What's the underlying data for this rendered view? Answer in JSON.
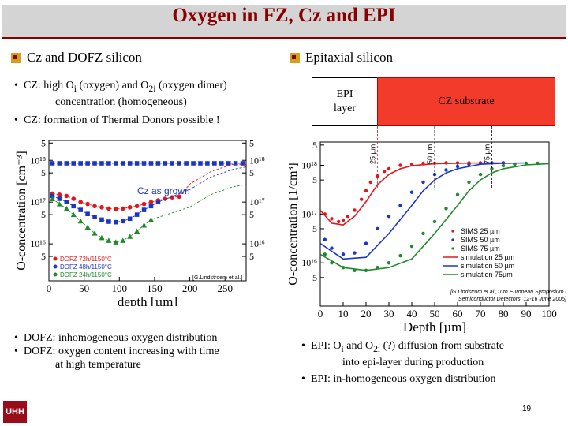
{
  "slide": {
    "title": "Oxygen in FZ, Cz and EPI",
    "page_number": "19",
    "logo_text": "UHH"
  },
  "left": {
    "heading": "Cz and DOFZ silicon",
    "bullets_top": [
      {
        "prefix": "CZ:  high O",
        "sub1": "i",
        "mid": " (oxygen) and O",
        "sub2": "2i",
        "suffix": " (oxygen dimer)",
        "cont": "concentration (homogeneous)"
      },
      {
        "text": "CZ: formation of Thermal Donors possible !"
      }
    ],
    "bullets_bottom": [
      {
        "text": "DOFZ:  inhomogeneous oxygen distribution"
      },
      {
        "text": "DOFZ: oxygen content increasing with time",
        "cont": "at high temperature"
      }
    ]
  },
  "right": {
    "heading": "Epitaxial silicon",
    "epi_label_1": "EPI",
    "epi_label_2": "layer",
    "cz_label": "CZ substrate",
    "bullets_bottom": [
      {
        "prefix": "EPI: O",
        "sub1": "i",
        "mid": " and O",
        "sub2": "2i",
        "suffix": " (?) diffusion from substrate",
        "cont": "into epi-layer during production"
      },
      {
        "text": "EPI: in-homogeneous oxygen distribution"
      }
    ]
  },
  "chart_data": [
    {
      "type": "scatter",
      "ylabel": "O-concentration [cm⁻³]",
      "xlabel": "depth [µm]",
      "xlim": [
        0,
        280
      ],
      "ylim": [
        1300000000000000.0,
        3e+18
      ],
      "y_scale": "log",
      "x_ticks": [
        "0",
        "50",
        "100",
        "150",
        "200",
        "250"
      ],
      "y_ticks": [
        "5",
        "10¹⁸",
        "5",
        "10¹⁷",
        "5",
        "10¹⁶",
        "5"
      ],
      "annotation": "Cz as grown",
      "credit": "[G.Lindstroem et al.]",
      "legend": [
        "DOFZ 72h/1150°C",
        "DOFZ 48h/1150°C",
        "DOFZ 24h/1150°C"
      ],
      "series": [
        {
          "name": "Cz as grown",
          "color": "#1a35c8",
          "x": [
            5,
            15,
            25,
            35,
            45,
            55,
            65,
            75,
            85,
            95,
            105,
            115,
            125,
            135,
            145,
            155,
            165,
            175,
            185,
            195,
            205,
            215,
            225,
            235,
            245,
            255,
            265,
            275
          ],
          "y": [
            8.5e+17,
            8.5e+17,
            8.5e+17,
            8.5e+17,
            8.5e+17,
            8.5e+17,
            8.5e+17,
            8.5e+17,
            8.5e+17,
            8.5e+17,
            8.5e+17,
            8.5e+17,
            8.5e+17,
            8.5e+17,
            8.5e+17,
            8.5e+17,
            8.5e+17,
            8.5e+17,
            8.5e+17,
            8.5e+17,
            8.5e+17,
            8.5e+17,
            8.5e+17,
            8.5e+17,
            8.5e+17,
            8.5e+17,
            8.5e+17,
            8.5e+17
          ]
        },
        {
          "name": "DOFZ 72h/1150°C",
          "color": "#e0181c",
          "x": [
            5,
            15,
            25,
            35,
            45,
            55,
            65,
            75,
            85,
            95,
            105,
            115,
            125,
            135,
            145,
            155,
            165,
            175,
            185
          ],
          "y": [
            1.6e+17,
            1.5e+17,
            1.4e+17,
            1.2e+17,
            1e+17,
            9e+16,
            8e+16,
            7.5e+16,
            7e+16,
            6.8e+16,
            7e+16,
            7.5e+16,
            8e+16,
            9e+16,
            1e+17,
            1.1e+17,
            1.2e+17,
            1.3e+17,
            1.35e+17
          ]
        },
        {
          "name": "DOFZ 48h/1150°C",
          "color": "#1a35c8",
          "x": [
            5,
            15,
            25,
            35,
            45,
            55,
            65,
            75,
            85,
            95,
            105,
            115,
            125,
            135,
            145,
            155
          ],
          "y": [
            1.4e+17,
            1.2e+17,
            1e+17,
            8e+16,
            6.5e+16,
            5.2e+16,
            4.4e+16,
            3.8e+16,
            3.4e+16,
            3.3e+16,
            3.5e+16,
            4e+16,
            5e+16,
            6.5e+16,
            8e+16,
            1e+17
          ]
        },
        {
          "name": "DOFZ 24h/1150°C",
          "color": "#1f8a2a",
          "x": [
            5,
            15,
            25,
            35,
            45,
            55,
            65,
            75,
            85,
            95,
            105,
            115,
            125,
            135,
            145
          ],
          "y": [
            1.2e+17,
            9e+16,
            7e+16,
            5e+16,
            3.5e+16,
            2.5e+16,
            1.8e+16,
            1.4e+16,
            1.2e+16,
            1.1e+16,
            1.2e+16,
            1.5e+16,
            2e+16,
            2.8e+16,
            3.8e+16
          ]
        }
      ]
    },
    {
      "type": "line",
      "ylabel": "O-concentration [1/cm³]",
      "xlabel": "Depth [µm]",
      "xlim": [
        0,
        100
      ],
      "ylim": [
        1300000000000000.0,
        3e+18
      ],
      "y_scale": "log",
      "x_ticks": [
        "0",
        "10",
        "20",
        "30",
        "40",
        "50",
        "60",
        "70",
        "80",
        "90",
        "100"
      ],
      "y_ticks": [
        "5",
        "10¹⁸",
        "5",
        "10¹⁷",
        "5",
        "10¹⁶",
        "5"
      ],
      "markers": [
        "25 µm",
        "50 µm",
        "75 µm"
      ],
      "credit_1": "[G.Lindström et al.,10th European Symposium on",
      "credit_2": "Semiconductor Detectors, 12-16 June 2005]",
      "legend": [
        "SIMS 25 µm",
        "SIMS 50 µm",
        "SIMS 75 µm",
        "simulation 25 µm",
        "simulation 50 µm",
        "simulation 75µm"
      ],
      "series": [
        {
          "name": "SIMS 25 µm",
          "color": "#e0181c",
          "x": [
            2,
            5,
            8,
            10,
            12,
            15,
            18,
            20,
            22,
            25,
            28,
            30,
            35,
            40,
            45,
            50,
            55,
            60,
            65,
            70,
            75,
            80
          ],
          "y": [
            1e+17,
            8e+16,
            7e+16,
            7.5e+16,
            9e+16,
            1.2e+17,
            2e+17,
            3e+17,
            4.5e+17,
            6e+17,
            7.5e+17,
            8.5e+17,
            1e+18,
            1.05e+18,
            1.1e+18,
            1.1e+18,
            1.12e+18,
            1.12e+18,
            1.12e+18,
            1.12e+18,
            1.12e+18,
            1.12e+18
          ]
        },
        {
          "name": "SIMS 50 µm",
          "color": "#1a35c8",
          "x": [
            2,
            5,
            10,
            15,
            20,
            25,
            30,
            35,
            40,
            45,
            50,
            55,
            60,
            65,
            70,
            75,
            80
          ],
          "y": [
            3e+16,
            2e+16,
            1.5e+16,
            1.6e+16,
            2.5e+16,
            5e+16,
            9e+16,
            1.5e+17,
            2.8e+17,
            4.5e+17,
            6.5e+17,
            8e+17,
            9.5e+17,
            1.05e+18,
            1.1e+18,
            1.12e+18,
            1.12e+18
          ]
        },
        {
          "name": "SIMS 75 µm",
          "color": "#1f8a2a",
          "x": [
            2,
            5,
            10,
            15,
            20,
            25,
            30,
            35,
            40,
            45,
            50,
            55,
            60,
            65,
            70,
            75,
            80,
            85,
            90,
            95
          ],
          "y": [
            1.5e+16,
            1e+16,
            8000000000000000.0,
            7000000000000000.0,
            7000000000000000.0,
            8000000000000000.0,
            1e+16,
            1.4e+16,
            2.2e+16,
            4e+16,
            7e+16,
            1.3e+17,
            2.5e+17,
            4.5e+17,
            6.5e+17,
            8.5e+17,
            9.8e+17,
            1.05e+18,
            1.1e+18,
            1.1e+18
          ]
        },
        {
          "name": "simulation 25 µm",
          "color": "#e0181c",
          "x": [
            0,
            5,
            10,
            15,
            20,
            25,
            30,
            35,
            40,
            50,
            60,
            70,
            80
          ],
          "y": [
            1.2e+17,
            6.5e+16,
            6e+16,
            9e+16,
            1.8e+17,
            4e+17,
            6.5e+17,
            8.5e+17,
            9.8e+17,
            1.08e+18,
            1.1e+18,
            1.12e+18,
            1.12e+18
          ]
        },
        {
          "name": "simulation 50 µm",
          "color": "#1a35c8",
          "x": [
            0,
            10,
            20,
            30,
            40,
            45,
            50,
            55,
            60,
            70,
            80,
            90
          ],
          "y": [
            2.5e+16,
            1.2e+16,
            1.3e+16,
            4e+16,
            1.5e+17,
            3e+17,
            5e+17,
            7e+17,
            8.5e+17,
            1.05e+18,
            1.1e+18,
            1.12e+18
          ]
        },
        {
          "name": "simulation 75µm",
          "color": "#1f8a2a",
          "x": [
            0,
            10,
            20,
            30,
            40,
            50,
            60,
            65,
            70,
            75,
            80,
            90,
            100
          ],
          "y": [
            1.5e+16,
            8000000000000000.0,
            7000000000000000.0,
            8000000000000000.0,
            1.2e+16,
            4e+16,
            1.5e+17,
            3e+17,
            5e+17,
            7e+17,
            8.5e+17,
            1.02e+18,
            1.08e+18
          ]
        }
      ]
    }
  ]
}
